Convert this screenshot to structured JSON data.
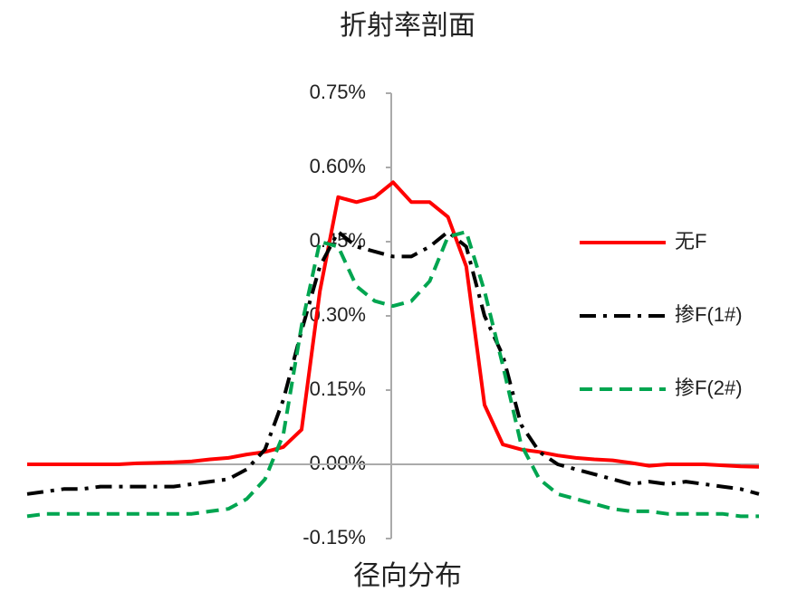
{
  "chart_data": {
    "type": "line",
    "title": "折射率剖面",
    "x_label": "径向分布",
    "ylim": [
      -0.15,
      0.75
    ],
    "yticks": [
      {
        "value": -0.15,
        "label": "-0.15%"
      },
      {
        "value": 0,
        "label": "0.00%"
      },
      {
        "value": 0.15,
        "label": "0.15%"
      },
      {
        "value": 0.3,
        "label": "0.30%"
      },
      {
        "value": 0.45,
        "label": "0.45%"
      },
      {
        "value": 0.6,
        "label": "0.60%"
      },
      {
        "value": 0.75,
        "label": "0.75%"
      }
    ],
    "legend": "right",
    "series": [
      {
        "name": "无F",
        "color": "#ff0000",
        "dash": "solid",
        "values": [
          0,
          0,
          0,
          0,
          0,
          0,
          0.002,
          0.003,
          0.004,
          0.006,
          0.01,
          0.013,
          0.02,
          0.025,
          0.035,
          0.07,
          0.35,
          0.54,
          0.53,
          0.54,
          0.57,
          0.53,
          0.53,
          0.5,
          0.4,
          0.12,
          0.04,
          0.03,
          0.025,
          0.018,
          0.013,
          0.01,
          0.008,
          0.003,
          -0.003,
          0,
          0,
          0,
          -0.002,
          -0.004,
          -0.005
        ]
      },
      {
        "name": "掺F(1#)",
        "color": "#000000",
        "dash": "dashdot",
        "values": [
          -0.06,
          -0.055,
          -0.05,
          -0.05,
          -0.045,
          -0.045,
          -0.045,
          -0.045,
          -0.045,
          -0.04,
          -0.035,
          -0.03,
          -0.01,
          0.03,
          0.13,
          0.27,
          0.4,
          0.47,
          0.44,
          0.43,
          0.42,
          0.42,
          0.44,
          0.47,
          0.44,
          0.3,
          0.22,
          0.08,
          0.025,
          0,
          -0.01,
          -0.02,
          -0.03,
          -0.04,
          -0.035,
          -0.04,
          -0.035,
          -0.04,
          -0.045,
          -0.05,
          -0.06
        ]
      },
      {
        "name": "掺F(2#)",
        "color": "#00a550",
        "dash": "dashed",
        "values": [
          -0.105,
          -0.1,
          -0.1,
          -0.1,
          -0.1,
          -0.1,
          -0.1,
          -0.1,
          -0.1,
          -0.1,
          -0.095,
          -0.09,
          -0.07,
          -0.03,
          0.06,
          0.28,
          0.45,
          0.44,
          0.36,
          0.33,
          0.32,
          0.33,
          0.37,
          0.46,
          0.47,
          0.35,
          0.2,
          0.04,
          -0.03,
          -0.06,
          -0.07,
          -0.08,
          -0.09,
          -0.095,
          -0.095,
          -0.1,
          -0.1,
          -0.1,
          -0.1,
          -0.105,
          -0.105
        ]
      }
    ]
  }
}
